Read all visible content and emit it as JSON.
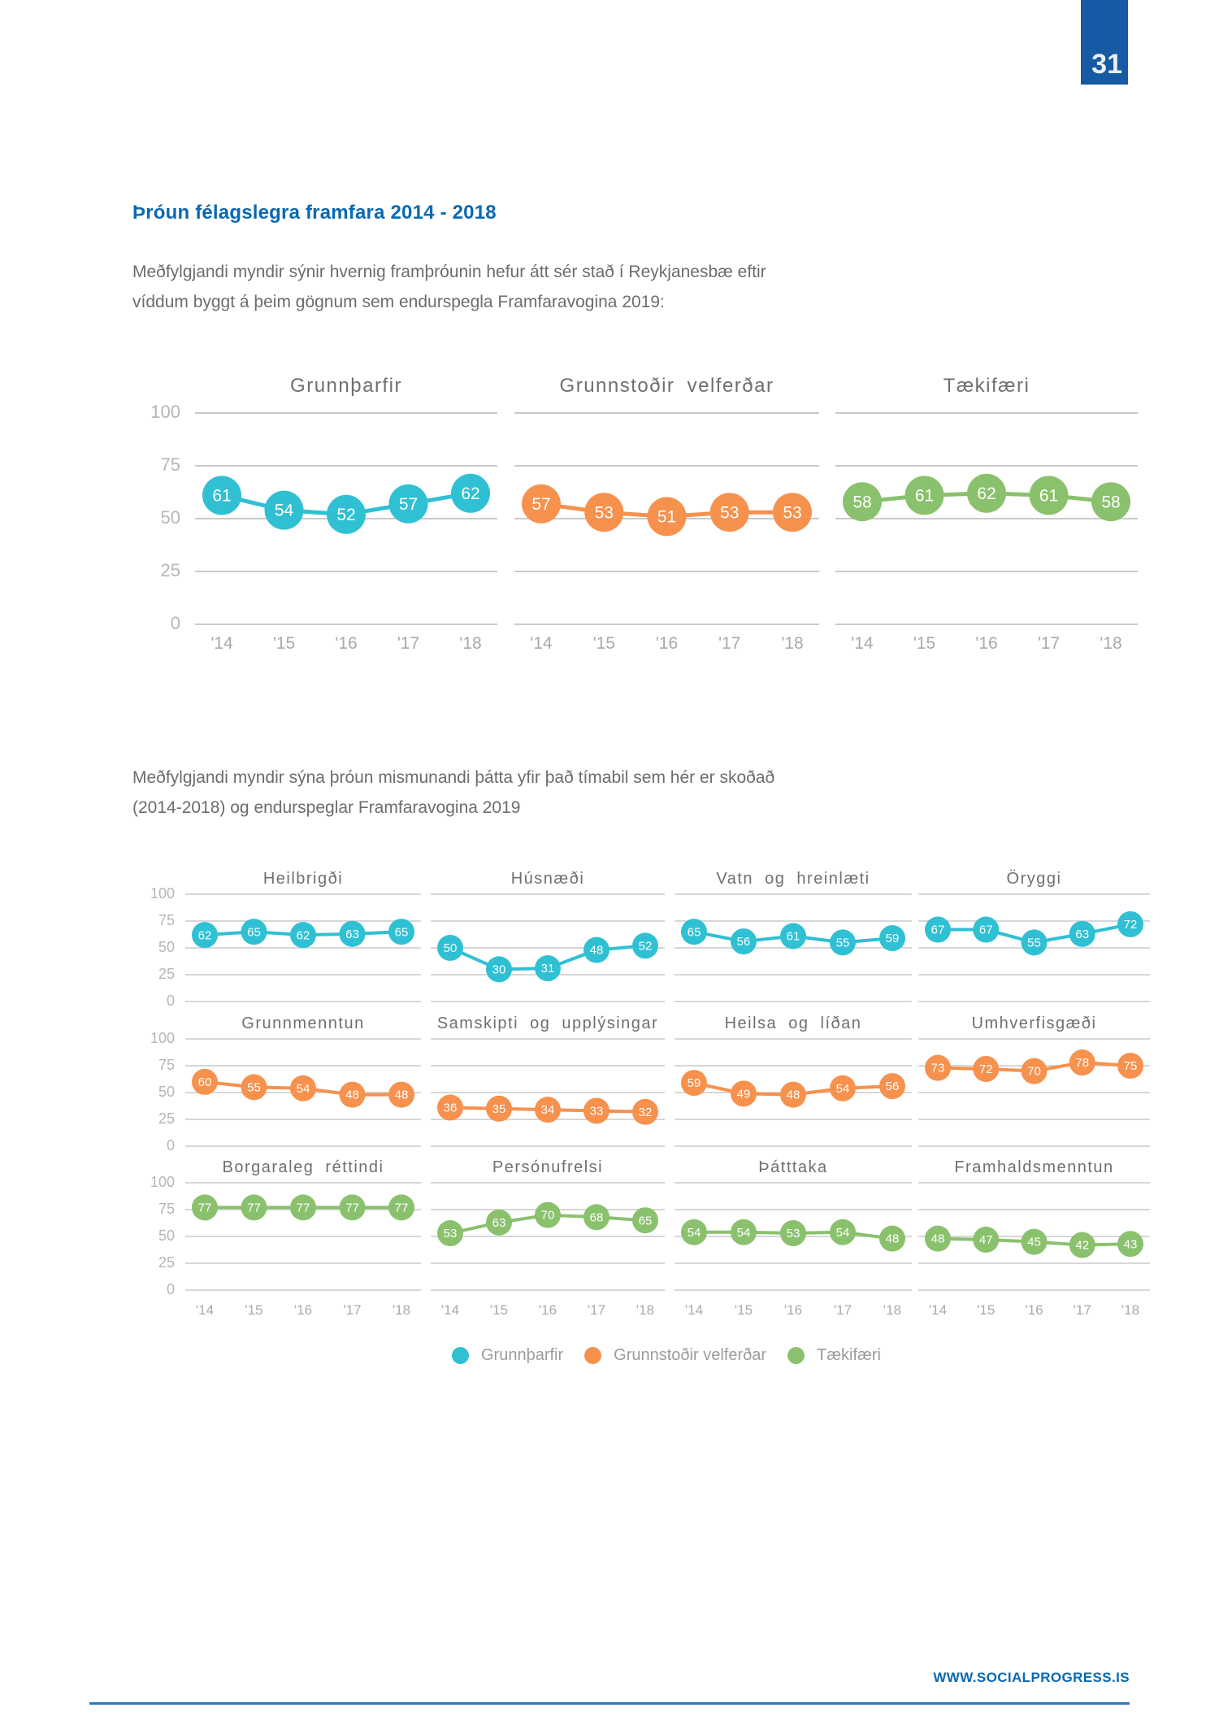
{
  "page": {
    "number": "31",
    "footer_url": "WWW.SOCIALPROGRESS.IS"
  },
  "heading": "Þróun félagslegra framfara 2014 - 2018",
  "paragraphs": {
    "p1": [
      "Meðfylgjandi myndir sýnir hvernig framþróunin hefur átt sér stað í Reykjanesbæ  eftir",
      "víddum byggt á þeim gögnum sem endurspegla Framfaravogina 2019:"
    ],
    "p2": [
      "Meðfylgjandi myndir sýna þróun mismunandi þátta yfir það tímabil sem hér er skoðað",
      "(2014-2018) og endurspeglar Framfaravogina 2019"
    ]
  },
  "colors": {
    "cyan": "#2FC0D4",
    "orange": "#F6914E",
    "green": "#8AC16D",
    "heading_blue": "#0A69B1",
    "badge_blue": "#1659A5",
    "rule_blue": "#2E75BC",
    "grid_gray": "#C9CACB",
    "tick_gray": "#B5B6B8",
    "xlabel_gray": "#A8A9AB",
    "title_gray": "#6E6F71",
    "body_gray": "#6B6C70"
  },
  "legend": [
    {
      "label": "Grunnþarfir",
      "color_key": "cyan"
    },
    {
      "label": "Grunnstoðir velferðar",
      "color_key": "orange"
    },
    {
      "label": "Tækifæri",
      "color_key": "green"
    }
  ],
  "chart_data": {
    "type": "line",
    "x": [
      "'14",
      "'15",
      "'16",
      "'17",
      "'18"
    ],
    "y_ticks": [
      100,
      75,
      50,
      25,
      0
    ],
    "ylim": [
      0,
      100
    ],
    "grid": true,
    "legend_position": "bottom",
    "overview_panels": [
      {
        "title": "Grunnþarfir",
        "slug": "grunntharfir",
        "color_key": "cyan",
        "values": [
          61,
          54,
          52,
          57,
          62
        ]
      },
      {
        "title": "Grunnstoðir velferðar",
        "slug": "grunnstodir-velferdar",
        "color_key": "orange",
        "values": [
          57,
          53,
          51,
          53,
          53
        ]
      },
      {
        "title": "Tækifæri",
        "slug": "taekifaeri",
        "color_key": "green",
        "values": [
          58,
          61,
          62,
          61,
          58
        ]
      }
    ],
    "detail_rows": [
      {
        "color_key": "cyan",
        "series_name": "Grunnþarfir",
        "panels": [
          {
            "title": "Heilbrigði",
            "slug": "heilbrigdi",
            "values": [
              62,
              65,
              62,
              63,
              65
            ]
          },
          {
            "title": "Húsnæði",
            "slug": "husnaedi",
            "values": [
              50,
              30,
              31,
              48,
              52
            ]
          },
          {
            "title": "Vatn og hreinlæti",
            "slug": "vatn-og-hreinlaeti",
            "values": [
              65,
              56,
              61,
              55,
              59
            ]
          },
          {
            "title": "Öryggi",
            "slug": "oryggi",
            "values": [
              67,
              67,
              55,
              63,
              72
            ]
          }
        ]
      },
      {
        "color_key": "orange",
        "series_name": "Grunnstoðir velferðar",
        "panels": [
          {
            "title": "Grunnmenntun",
            "slug": "grunnmenntun",
            "values": [
              60,
              55,
              54,
              48,
              48
            ]
          },
          {
            "title": "Samskipti og upplýsingar",
            "slug": "samskipti-og-upplysingar",
            "values": [
              36,
              35,
              34,
              33,
              32
            ]
          },
          {
            "title": "Heilsa og líðan",
            "slug": "heilsa-og-lidan",
            "values": [
              59,
              49,
              48,
              54,
              56
            ]
          },
          {
            "title": "Umhverfisgæði",
            "slug": "umhverfisgaedi",
            "values": [
              73,
              72,
              70,
              78,
              75
            ]
          }
        ]
      },
      {
        "color_key": "green",
        "series_name": "Tækifæri",
        "panels": [
          {
            "title": "Borgaraleg réttindi",
            "slug": "borgaraleg-rettindi",
            "values": [
              77,
              77,
              77,
              77,
              77
            ]
          },
          {
            "title": "Persónufrelsi",
            "slug": "personufrelsi",
            "values": [
              53,
              63,
              70,
              68,
              65
            ]
          },
          {
            "title": "Þátttaka",
            "slug": "thatttaka",
            "values": [
              54,
              54,
              53,
              54,
              48
            ]
          },
          {
            "title": "Framhaldsmenntun",
            "slug": "framhaldsmenntun",
            "values": [
              48,
              47,
              45,
              42,
              43
            ]
          }
        ]
      }
    ]
  }
}
